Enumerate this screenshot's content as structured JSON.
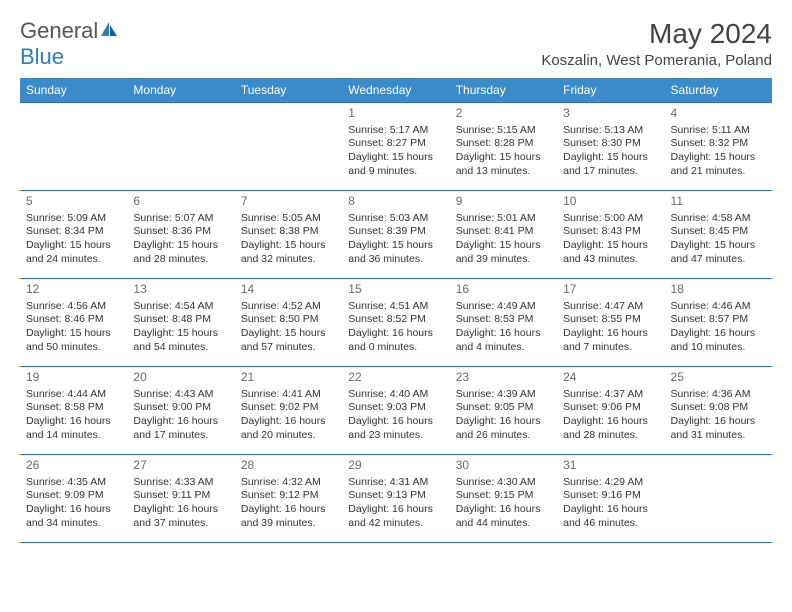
{
  "logo": {
    "text_gray": "General",
    "text_blue": "Blue"
  },
  "title": "May 2024",
  "location": "Koszalin, West Pomerania, Poland",
  "colors": {
    "header_bg": "#3b8bc9",
    "header_text": "#ffffff",
    "border": "#2b6ca3",
    "logo_blue": "#2b7fbf",
    "body_text": "#333333",
    "daynum": "#6a6a6a",
    "background": "#ffffff"
  },
  "weekdays": [
    "Sunday",
    "Monday",
    "Tuesday",
    "Wednesday",
    "Thursday",
    "Friday",
    "Saturday"
  ],
  "weeks": [
    [
      null,
      null,
      null,
      {
        "day": "1",
        "sunrise": "5:17 AM",
        "sunset": "8:27 PM",
        "daylight": "15 hours and 9 minutes."
      },
      {
        "day": "2",
        "sunrise": "5:15 AM",
        "sunset": "8:28 PM",
        "daylight": "15 hours and 13 minutes."
      },
      {
        "day": "3",
        "sunrise": "5:13 AM",
        "sunset": "8:30 PM",
        "daylight": "15 hours and 17 minutes."
      },
      {
        "day": "4",
        "sunrise": "5:11 AM",
        "sunset": "8:32 PM",
        "daylight": "15 hours and 21 minutes."
      }
    ],
    [
      {
        "day": "5",
        "sunrise": "5:09 AM",
        "sunset": "8:34 PM",
        "daylight": "15 hours and 24 minutes."
      },
      {
        "day": "6",
        "sunrise": "5:07 AM",
        "sunset": "8:36 PM",
        "daylight": "15 hours and 28 minutes."
      },
      {
        "day": "7",
        "sunrise": "5:05 AM",
        "sunset": "8:38 PM",
        "daylight": "15 hours and 32 minutes."
      },
      {
        "day": "8",
        "sunrise": "5:03 AM",
        "sunset": "8:39 PM",
        "daylight": "15 hours and 36 minutes."
      },
      {
        "day": "9",
        "sunrise": "5:01 AM",
        "sunset": "8:41 PM",
        "daylight": "15 hours and 39 minutes."
      },
      {
        "day": "10",
        "sunrise": "5:00 AM",
        "sunset": "8:43 PM",
        "daylight": "15 hours and 43 minutes."
      },
      {
        "day": "11",
        "sunrise": "4:58 AM",
        "sunset": "8:45 PM",
        "daylight": "15 hours and 47 minutes."
      }
    ],
    [
      {
        "day": "12",
        "sunrise": "4:56 AM",
        "sunset": "8:46 PM",
        "daylight": "15 hours and 50 minutes."
      },
      {
        "day": "13",
        "sunrise": "4:54 AM",
        "sunset": "8:48 PM",
        "daylight": "15 hours and 54 minutes."
      },
      {
        "day": "14",
        "sunrise": "4:52 AM",
        "sunset": "8:50 PM",
        "daylight": "15 hours and 57 minutes."
      },
      {
        "day": "15",
        "sunrise": "4:51 AM",
        "sunset": "8:52 PM",
        "daylight": "16 hours and 0 minutes."
      },
      {
        "day": "16",
        "sunrise": "4:49 AM",
        "sunset": "8:53 PM",
        "daylight": "16 hours and 4 minutes."
      },
      {
        "day": "17",
        "sunrise": "4:47 AM",
        "sunset": "8:55 PM",
        "daylight": "16 hours and 7 minutes."
      },
      {
        "day": "18",
        "sunrise": "4:46 AM",
        "sunset": "8:57 PM",
        "daylight": "16 hours and 10 minutes."
      }
    ],
    [
      {
        "day": "19",
        "sunrise": "4:44 AM",
        "sunset": "8:58 PM",
        "daylight": "16 hours and 14 minutes."
      },
      {
        "day": "20",
        "sunrise": "4:43 AM",
        "sunset": "9:00 PM",
        "daylight": "16 hours and 17 minutes."
      },
      {
        "day": "21",
        "sunrise": "4:41 AM",
        "sunset": "9:02 PM",
        "daylight": "16 hours and 20 minutes."
      },
      {
        "day": "22",
        "sunrise": "4:40 AM",
        "sunset": "9:03 PM",
        "daylight": "16 hours and 23 minutes."
      },
      {
        "day": "23",
        "sunrise": "4:39 AM",
        "sunset": "9:05 PM",
        "daylight": "16 hours and 26 minutes."
      },
      {
        "day": "24",
        "sunrise": "4:37 AM",
        "sunset": "9:06 PM",
        "daylight": "16 hours and 28 minutes."
      },
      {
        "day": "25",
        "sunrise": "4:36 AM",
        "sunset": "9:08 PM",
        "daylight": "16 hours and 31 minutes."
      }
    ],
    [
      {
        "day": "26",
        "sunrise": "4:35 AM",
        "sunset": "9:09 PM",
        "daylight": "16 hours and 34 minutes."
      },
      {
        "day": "27",
        "sunrise": "4:33 AM",
        "sunset": "9:11 PM",
        "daylight": "16 hours and 37 minutes."
      },
      {
        "day": "28",
        "sunrise": "4:32 AM",
        "sunset": "9:12 PM",
        "daylight": "16 hours and 39 minutes."
      },
      {
        "day": "29",
        "sunrise": "4:31 AM",
        "sunset": "9:13 PM",
        "daylight": "16 hours and 42 minutes."
      },
      {
        "day": "30",
        "sunrise": "4:30 AM",
        "sunset": "9:15 PM",
        "daylight": "16 hours and 44 minutes."
      },
      {
        "day": "31",
        "sunrise": "4:29 AM",
        "sunset": "9:16 PM",
        "daylight": "16 hours and 46 minutes."
      },
      null
    ]
  ],
  "labels": {
    "sunrise": "Sunrise:",
    "sunset": "Sunset:",
    "daylight": "Daylight:"
  }
}
